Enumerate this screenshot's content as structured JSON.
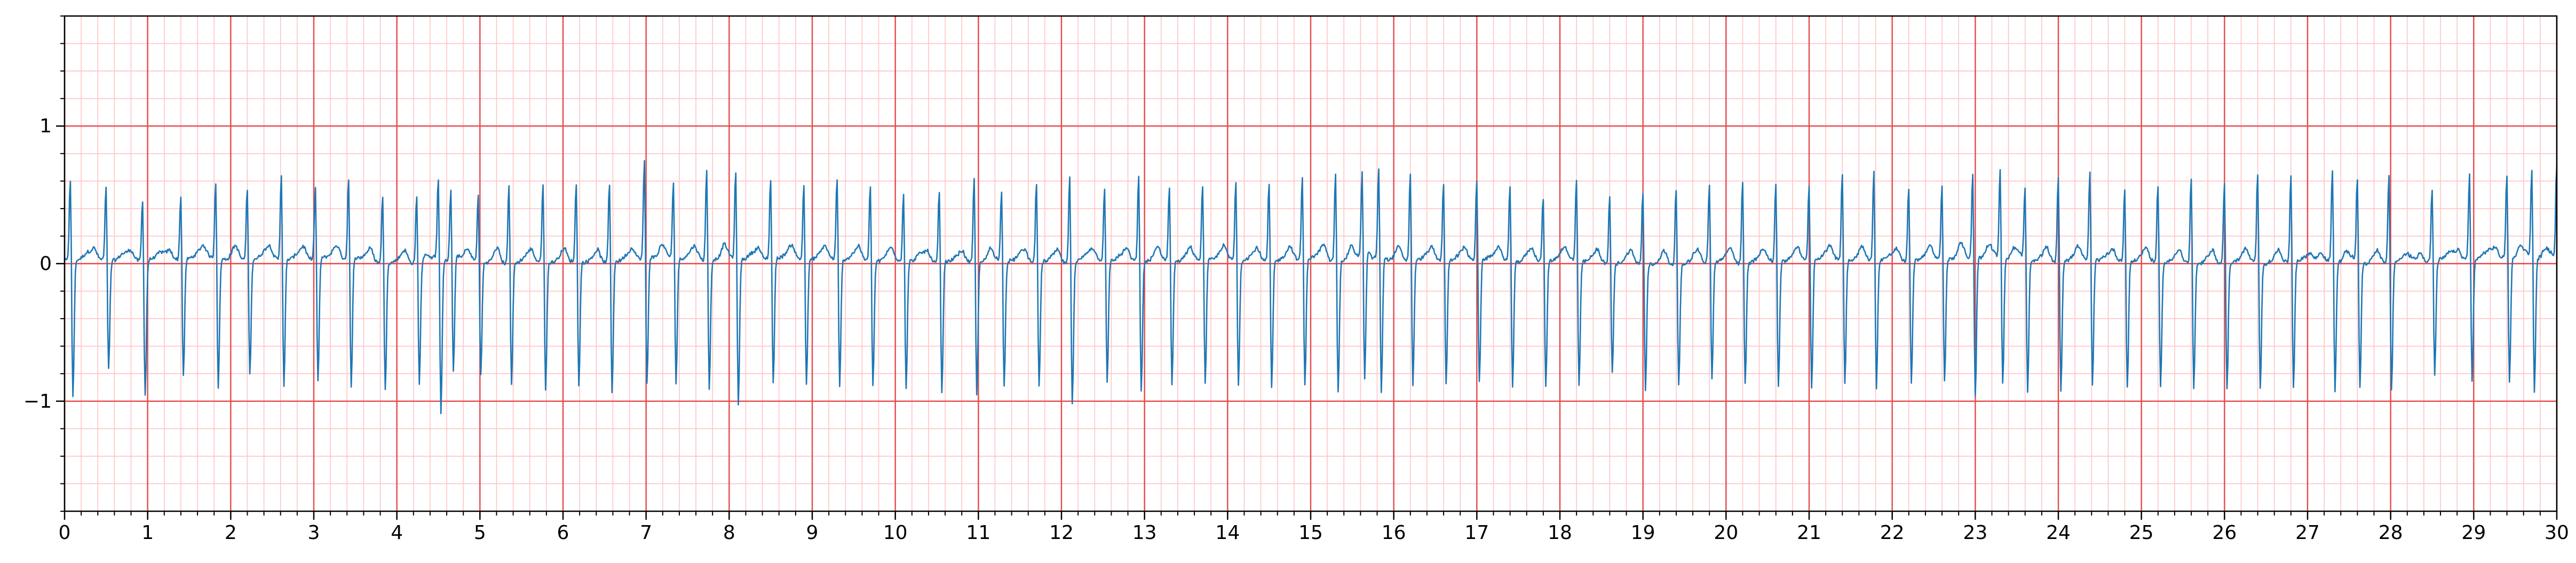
{
  "colors": {
    "trace": "#1f77b4",
    "major_grid": "#e8474a",
    "minor_grid": "#ffc4c4",
    "axis": "#000000"
  },
  "chart_data": {
    "type": "line",
    "title": "",
    "xlabel": "",
    "ylabel": "",
    "xlim": [
      0,
      30
    ],
    "ylim": [
      -1.8,
      1.8
    ],
    "x_major_ticks": [
      0,
      1,
      2,
      3,
      4,
      5,
      6,
      7,
      8,
      9,
      10,
      11,
      12,
      13,
      14,
      15,
      16,
      17,
      18,
      19,
      20,
      21,
      22,
      23,
      24,
      25,
      26,
      27,
      28,
      29,
      30
    ],
    "x_tick_labels": [
      "0",
      "1",
      "2",
      "3",
      "4",
      "5",
      "6",
      "7",
      "8",
      "9",
      "10",
      "11",
      "12",
      "13",
      "14",
      "15",
      "16",
      "17",
      "18",
      "19",
      "20",
      "21",
      "22",
      "23",
      "24",
      "25",
      "26",
      "27",
      "28",
      "29",
      "30"
    ],
    "x_minor_step": 0.2,
    "y_major_ticks": [
      -1,
      0,
      1
    ],
    "y_tick_labels": [
      "−1",
      "0",
      "1"
    ],
    "y_minor_step": 0.2,
    "grid": true,
    "series": [
      {
        "sampling_rate_hz": 100,
        "beats": [
          {
            "t": 0.07,
            "r": 0.68,
            "s": -1.02
          },
          {
            "t": 0.5,
            "r": 0.6,
            "s": -0.82
          },
          {
            "t": 0.94,
            "r": 0.52,
            "s": -1.0
          },
          {
            "t": 1.4,
            "r": 0.54,
            "s": -0.87
          },
          {
            "t": 1.82,
            "r": 0.64,
            "s": -0.96
          },
          {
            "t": 2.2,
            "r": 0.59,
            "s": -0.87
          },
          {
            "t": 2.61,
            "r": 0.7,
            "s": -0.95
          },
          {
            "t": 3.02,
            "r": 0.6,
            "s": -0.93
          },
          {
            "t": 3.42,
            "r": 0.68,
            "s": -0.98
          },
          {
            "t": 3.83,
            "r": 0.58,
            "s": -0.96
          },
          {
            "t": 4.24,
            "r": 0.56,
            "s": -0.9
          },
          {
            "t": 4.65,
            "r": 0.58,
            "s": -0.86
          },
          {
            "t": 4.5,
            "r": 0.62,
            "s": -1.18
          },
          {
            "t": 4.98,
            "r": 0.56,
            "s": -0.84
          },
          {
            "t": 5.35,
            "r": 0.67,
            "s": -0.92
          },
          {
            "t": 5.76,
            "r": 0.67,
            "s": -0.95
          },
          {
            "t": 6.16,
            "r": 0.65,
            "s": -0.93
          },
          {
            "t": 6.56,
            "r": 0.65,
            "s": -0.98
          },
          {
            "t": 6.98,
            "r": 0.8,
            "s": -0.95
          },
          {
            "t": 7.33,
            "r": 0.63,
            "s": -0.93
          },
          {
            "t": 7.73,
            "r": 0.75,
            "s": -0.96
          },
          {
            "t": 8.08,
            "r": 0.73,
            "s": -1.1
          },
          {
            "t": 8.5,
            "r": 0.67,
            "s": -0.94
          },
          {
            "t": 8.9,
            "r": 0.64,
            "s": -0.93
          },
          {
            "t": 9.3,
            "r": 0.67,
            "s": -0.95
          },
          {
            "t": 9.7,
            "r": 0.64,
            "s": -0.93
          },
          {
            "t": 10.1,
            "r": 0.58,
            "s": -0.95
          },
          {
            "t": 10.53,
            "r": 0.6,
            "s": -0.97
          },
          {
            "t": 10.95,
            "r": 0.7,
            "s": -0.98
          },
          {
            "t": 11.28,
            "r": 0.6,
            "s": -0.92
          },
          {
            "t": 11.7,
            "r": 0.65,
            "s": -0.94
          },
          {
            "t": 12.1,
            "r": 0.73,
            "s": -1.05
          },
          {
            "t": 12.52,
            "r": 0.62,
            "s": -0.92
          },
          {
            "t": 12.93,
            "r": 0.7,
            "s": -0.98
          },
          {
            "t": 13.3,
            "r": 0.62,
            "s": -0.93
          },
          {
            "t": 13.7,
            "r": 0.63,
            "s": -0.92
          },
          {
            "t": 14.1,
            "r": 0.65,
            "s": -0.93
          },
          {
            "t": 14.5,
            "r": 0.65,
            "s": -0.95
          },
          {
            "t": 14.9,
            "r": 0.68,
            "s": -0.95
          },
          {
            "t": 15.3,
            "r": 0.73,
            "s": -0.98
          },
          {
            "t": 15.62,
            "r": 0.7,
            "s": -0.94
          },
          {
            "t": 15.82,
            "r": 0.72,
            "s": -1.03
          },
          {
            "t": 16.2,
            "r": 0.72,
            "s": -0.94
          },
          {
            "t": 16.6,
            "r": 0.66,
            "s": -0.93
          },
          {
            "t": 17.0,
            "r": 0.67,
            "s": -0.93
          },
          {
            "t": 17.4,
            "r": 0.62,
            "s": -0.94
          },
          {
            "t": 17.8,
            "r": 0.55,
            "s": -0.95
          },
          {
            "t": 18.2,
            "r": 0.68,
            "s": -0.93
          },
          {
            "t": 18.6,
            "r": 0.57,
            "s": -0.82
          },
          {
            "t": 19.0,
            "r": 0.6,
            "s": -0.94
          },
          {
            "t": 19.4,
            "r": 0.65,
            "s": -0.9
          },
          {
            "t": 19.8,
            "r": 0.64,
            "s": -0.88
          },
          {
            "t": 20.2,
            "r": 0.68,
            "s": -0.91
          },
          {
            "t": 20.6,
            "r": 0.66,
            "s": -0.92
          },
          {
            "t": 21.0,
            "r": 0.62,
            "s": -0.96
          },
          {
            "t": 21.4,
            "r": 0.72,
            "s": -0.93
          },
          {
            "t": 21.78,
            "r": 0.73,
            "s": -0.97
          },
          {
            "t": 22.2,
            "r": 0.62,
            "s": -0.93
          },
          {
            "t": 22.6,
            "r": 0.62,
            "s": -0.92
          },
          {
            "t": 22.97,
            "r": 0.71,
            "s": -1.04
          },
          {
            "t": 23.3,
            "r": 0.72,
            "s": -0.95
          },
          {
            "t": 23.6,
            "r": 0.6,
            "s": -0.98
          },
          {
            "t": 24.0,
            "r": 0.7,
            "s": -0.97
          },
          {
            "t": 24.38,
            "r": 0.72,
            "s": -0.95
          },
          {
            "t": 24.8,
            "r": 0.6,
            "s": -0.94
          },
          {
            "t": 25.2,
            "r": 0.64,
            "s": -0.94
          },
          {
            "t": 25.6,
            "r": 0.7,
            "s": -0.95
          },
          {
            "t": 26.0,
            "r": 0.67,
            "s": -0.93
          },
          {
            "t": 26.4,
            "r": 0.72,
            "s": -0.95
          },
          {
            "t": 26.8,
            "r": 0.72,
            "s": -0.94
          },
          {
            "t": 27.3,
            "r": 0.75,
            "s": -0.97
          },
          {
            "t": 27.6,
            "r": 0.7,
            "s": -0.93
          },
          {
            "t": 27.98,
            "r": 0.73,
            "s": -0.96
          },
          {
            "t": 28.5,
            "r": 0.6,
            "s": -0.86
          },
          {
            "t": 28.95,
            "r": 0.7,
            "s": -0.92
          },
          {
            "t": 29.4,
            "r": 0.7,
            "s": -0.94
          },
          {
            "t": 29.7,
            "r": 0.72,
            "s": -0.99
          },
          {
            "t": 30.0,
            "r": 0.78,
            "s": -1.0
          }
        ]
      }
    ]
  }
}
